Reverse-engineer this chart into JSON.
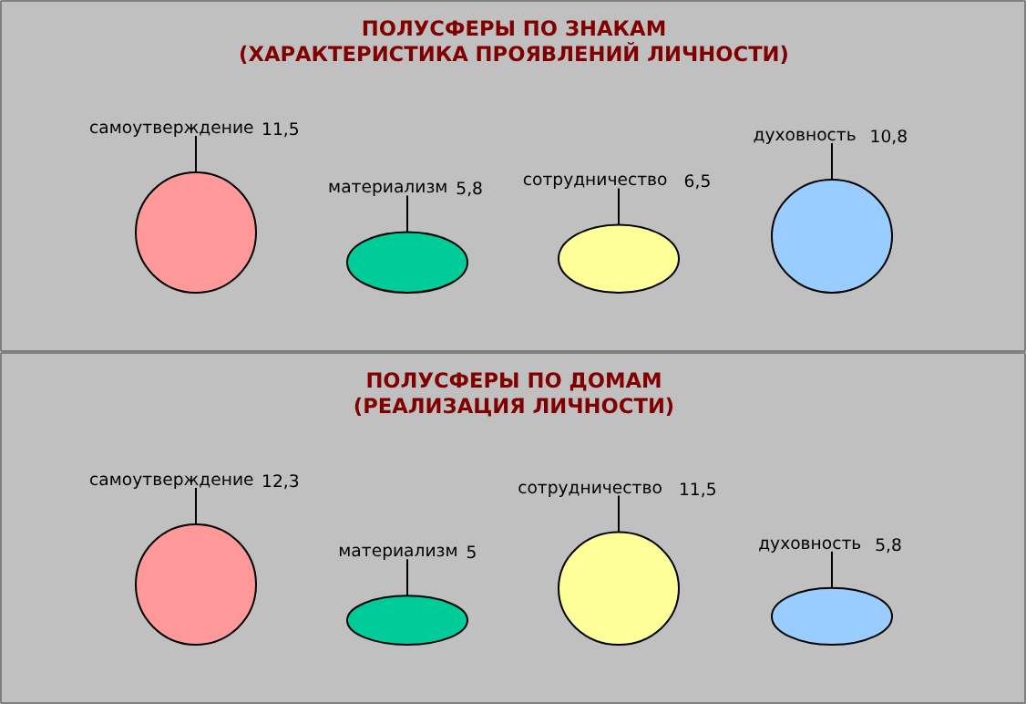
{
  "chart_data": [
    {
      "type": "other",
      "title": "ПОЛУСФЕРЫ ПО ЗНАКАМ",
      "subtitle": "(ХАРАКТЕРИСТИКА ПРОЯВЛЕНИЙ ЛИЧНОСТИ)",
      "categories": [
        "самоутверждение",
        "материализм",
        "сотрудничество",
        "духовность"
      ],
      "values": [
        11.5,
        5.8,
        6.5,
        10.8
      ],
      "value_labels": [
        "11,5",
        "5,8",
        "6,5",
        "10,8"
      ],
      "colors": [
        "#ff9999",
        "#00cc99",
        "#ffff99",
        "#99ccff"
      ]
    },
    {
      "type": "other",
      "title": "ПОЛУСФЕРЫ ПО ДОМАМ",
      "subtitle": "(РЕАЛИЗАЦИЯ ЛИЧНОСТИ)",
      "categories": [
        "самоутверждение",
        "материализм",
        "сотрудничество",
        "духовность"
      ],
      "values": [
        12.3,
        5,
        11.5,
        5.8
      ],
      "value_labels": [
        "12,3",
        "5",
        "11,5",
        "5,8"
      ],
      "colors": [
        "#ff9999",
        "#00cc99",
        "#ffff99",
        "#99ccff"
      ]
    }
  ]
}
